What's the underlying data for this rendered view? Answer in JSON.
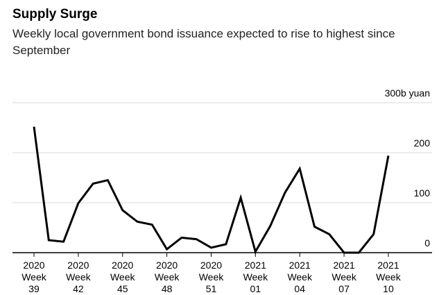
{
  "chart_data": {
    "type": "line",
    "title": "Supply Surge",
    "subtitle": "Weekly local government bond issuance expected to rise to highest since September",
    "ylabel": "",
    "xlabel": "",
    "y_unit_label": "300b yuan",
    "ylim": [
      0,
      300
    ],
    "y_ticks": [
      0,
      100,
      200,
      300
    ],
    "y_tick_labels": [
      "0",
      "100",
      "200",
      "300b yuan"
    ],
    "x_ticks": [
      {
        "index": 0,
        "year": "2020",
        "week_label": "Week",
        "week": "39"
      },
      {
        "index": 3,
        "year": "2020",
        "week_label": "Week",
        "week": "42"
      },
      {
        "index": 6,
        "year": "2020",
        "week_label": "Week",
        "week": "45"
      },
      {
        "index": 9,
        "year": "2020",
        "week_label": "Week",
        "week": "48"
      },
      {
        "index": 12,
        "year": "2020",
        "week_label": "Week",
        "week": "51"
      },
      {
        "index": 15,
        "year": "2021",
        "week_label": "Week",
        "week": "01"
      },
      {
        "index": 18,
        "year": "2021",
        "week_label": "Week",
        "week": "04"
      },
      {
        "index": 21,
        "year": "2021",
        "week_label": "Week",
        "week": "07"
      },
      {
        "index": 24,
        "year": "2021",
        "week_label": "Week",
        "week": "10"
      }
    ],
    "series": [
      {
        "name": "Local government bond issuance",
        "color": "#000000",
        "values": [
          252,
          25,
          22,
          99,
          138,
          145,
          85,
          62,
          56,
          7,
          30,
          27,
          10,
          17,
          110,
          2,
          53,
          120,
          168,
          52,
          37,
          0,
          0,
          37,
          194
        ]
      }
    ],
    "grid": true
  }
}
